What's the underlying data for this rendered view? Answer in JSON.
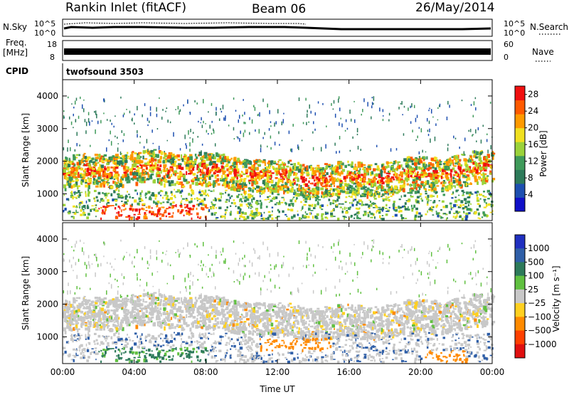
{
  "header": {
    "title": "Rankin Inlet (fitACF)",
    "beam": "Beam 06",
    "date": "26/May/2014"
  },
  "panels": {
    "nsky": {
      "label": "N.Sky",
      "right_label": "N.Search",
      "ticks_left": [
        "10^5",
        "10^0"
      ],
      "ticks_right": [
        "10^5",
        "10^0"
      ]
    },
    "freq": {
      "label": "Freq.",
      "unit": "[MHz]",
      "ticks_left": [
        "18",
        "8"
      ],
      "right_label": "Nave",
      "ticks_right": [
        "60",
        "0"
      ]
    },
    "cpid": {
      "label": "CPID",
      "program": "twofsound 3503"
    }
  },
  "colors": {
    "power": [
      "#1010c8",
      "#1d4fb0",
      "#2d7a5a",
      "#3f9a5a",
      "#9bd23a",
      "#f0e020",
      "#ff9a00",
      "#ff5a00",
      "#f01010"
    ],
    "velocity": [
      "#2030c0",
      "#2f5fa8",
      "#2d7a5a",
      "#60c040",
      "#c8c8c8",
      "#ffd020",
      "#ff8a00",
      "#ff4000",
      "#e01010"
    ]
  },
  "chart_data": [
    {
      "type": "heatmap",
      "name": "power",
      "ylabel": "Slant Range [km]",
      "xlabel": "",
      "ylim": [
        180,
        4500
      ],
      "xlim": [
        0,
        24
      ],
      "yticks": [
        1000,
        2000,
        3000,
        4000
      ],
      "colorbar": {
        "label": "Power [dB]",
        "ticks": [
          "4",
          "8",
          "12",
          "16",
          "20",
          "24",
          "28"
        ],
        "range": [
          0,
          30
        ]
      }
    },
    {
      "type": "heatmap",
      "name": "velocity",
      "ylabel": "Slant Range [km]",
      "xlabel": "Time UT",
      "ylim": [
        180,
        4500
      ],
      "xlim": [
        0,
        24
      ],
      "yticks": [
        1000,
        2000,
        3000,
        4000
      ],
      "xticks": [
        "00:00",
        "04:00",
        "08:00",
        "12:00",
        "16:00",
        "20:00",
        "00:00"
      ],
      "colorbar": {
        "label": "Velocity [m s⁻¹]",
        "ticks": [
          "1000",
          "500",
          "100",
          "25",
          "−25",
          "−100",
          "−500",
          "−1000"
        ]
      }
    }
  ]
}
